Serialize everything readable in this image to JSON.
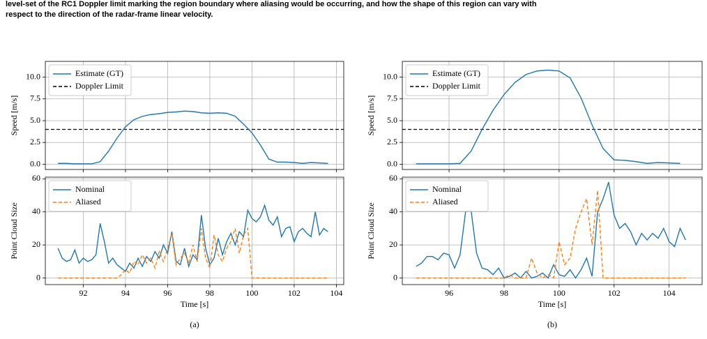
{
  "caption": [
    "level-set of the RC1 Doppler limit marking the region boundary where aliasing would be occurring, and how the shape of this region can vary with",
    "respect to the direction of the radar-frame linear velocity."
  ],
  "subfigure_labels": [
    "(a)",
    "(b)"
  ],
  "chart_data": [
    {
      "type": "line",
      "ylabel": "Speed [m/s]",
      "grid": true,
      "legend": "upper left",
      "xlim": [
        90.2,
        104.35
      ],
      "ylim": [
        -0.6,
        11.8
      ],
      "xticks": [
        92,
        94,
        96,
        98,
        100,
        102,
        104
      ],
      "yticks": [
        {
          "value": 0,
          "label": "0.0"
        },
        {
          "value": 2.5,
          "label": "2.5"
        },
        {
          "value": 5,
          "label": "5.0"
        },
        {
          "value": 7.5,
          "label": "7.5"
        },
        {
          "value": 10,
          "label": "10.0"
        }
      ],
      "x": [
        90.8,
        91.2,
        91.6,
        92.0,
        92.4,
        92.8,
        93.2,
        93.6,
        94.0,
        94.4,
        94.8,
        95.2,
        95.6,
        96.0,
        96.4,
        96.8,
        97.2,
        97.6,
        98.0,
        98.4,
        98.8,
        99.2,
        99.6,
        100.0,
        100.4,
        100.8,
        101.2,
        101.6,
        102.0,
        102.4,
        102.8,
        103.2,
        103.6
      ],
      "series": [
        {
          "name": "Estimate (GT)",
          "color": "#1f77b4",
          "values": [
            0.1,
            0.1,
            0.05,
            0.05,
            0.05,
            0.3,
            1.5,
            3.0,
            4.3,
            5.1,
            5.5,
            5.7,
            5.8,
            5.95,
            6.0,
            6.1,
            6.05,
            5.9,
            5.85,
            5.9,
            5.85,
            5.5,
            4.6,
            3.6,
            2.2,
            0.6,
            0.25,
            0.25,
            0.2,
            0.1,
            0.2,
            0.15,
            0.1
          ]
        }
      ],
      "hlines": [
        {
          "name": "Doppler Limit",
          "color": "#000000",
          "dashed": true,
          "y": 4
        }
      ]
    },
    {
      "type": "line",
      "ylabel": "Point Cloud Size",
      "xlabel": "Time [s]",
      "grid": true,
      "legend": "upper left",
      "xlim": [
        90.2,
        104.35
      ],
      "ylim": [
        -4,
        61
      ],
      "xticks": [
        92,
        94,
        96,
        98,
        100,
        102,
        104
      ],
      "yticks": [
        0,
        20,
        40,
        60
      ],
      "x": [
        90.8,
        91.0,
        91.2,
        91.4,
        91.6,
        91.8,
        92.0,
        92.2,
        92.4,
        92.6,
        92.8,
        93.0,
        93.2,
        93.4,
        93.6,
        93.8,
        94.0,
        94.2,
        94.4,
        94.6,
        94.8,
        95.0,
        95.2,
        95.4,
        95.6,
        95.8,
        96.0,
        96.2,
        96.4,
        96.6,
        96.8,
        97.0,
        97.2,
        97.4,
        97.6,
        97.8,
        98.0,
        98.2,
        98.4,
        98.6,
        98.8,
        99.0,
        99.2,
        99.4,
        99.6,
        99.8,
        100.0,
        100.2,
        100.4,
        100.6,
        100.8,
        101.0,
        101.2,
        101.4,
        101.6,
        101.8,
        102.0,
        102.2,
        102.4,
        102.6,
        102.8,
        103.0,
        103.2,
        103.4,
        103.6
      ],
      "series": [
        {
          "name": "Nominal",
          "color": "#1f77b4",
          "dashed": false,
          "values": [
            18,
            12,
            10,
            11,
            17,
            9,
            12,
            10,
            11,
            14,
            33,
            22,
            9,
            12,
            8,
            6,
            4,
            9,
            6,
            12,
            7,
            13,
            10,
            16,
            12,
            20,
            15,
            28,
            10,
            8,
            18,
            7,
            14,
            11,
            38,
            18,
            8,
            12,
            24,
            14,
            22,
            27,
            20,
            28,
            25,
            41,
            36,
            34,
            37,
            44,
            35,
            32,
            37,
            25,
            30,
            31,
            22,
            28,
            30,
            27,
            25,
            40,
            26,
            30,
            28
          ]
        },
        {
          "name": "Aliased",
          "color": "#ff7f0e",
          "dashed": true,
          "values": [
            0,
            0,
            0,
            0,
            0,
            0,
            0,
            0,
            0,
            0,
            0,
            0,
            0,
            0,
            0,
            2,
            5,
            3,
            10,
            8,
            14,
            9,
            12,
            6,
            16,
            10,
            18,
            27,
            8,
            12,
            15,
            9,
            20,
            10,
            30,
            12,
            6,
            26,
            14,
            10,
            18,
            22,
            30,
            15,
            26,
            30,
            0,
            0,
            0,
            0,
            0,
            0,
            0,
            0,
            0,
            0,
            0,
            0,
            0,
            0,
            0,
            0,
            0,
            0,
            0
          ]
        }
      ]
    },
    {
      "type": "line",
      "ylabel": "Speed [m/s]",
      "grid": true,
      "legend": "upper left",
      "xlim": [
        94.3,
        105.2
      ],
      "ylim": [
        -0.6,
        11.8
      ],
      "xticks": [
        96,
        98,
        100,
        102,
        104
      ],
      "yticks": [
        {
          "value": 0,
          "label": "0.0"
        },
        {
          "value": 2.5,
          "label": "2.5"
        },
        {
          "value": 5,
          "label": "5.0"
        },
        {
          "value": 7.5,
          "label": "7.5"
        },
        {
          "value": 10,
          "label": "10.0"
        }
      ],
      "x": [
        94.8,
        95.2,
        95.6,
        96.0,
        96.4,
        96.8,
        97.2,
        97.6,
        98.0,
        98.4,
        98.8,
        99.2,
        99.6,
        100.0,
        100.4,
        100.8,
        101.2,
        101.6,
        102.0,
        102.4,
        102.8,
        103.2,
        103.6,
        104.0,
        104.4
      ],
      "series": [
        {
          "name": "Estimate (GT)",
          "color": "#1f77b4",
          "values": [
            0.05,
            0.05,
            0.05,
            0.05,
            0.1,
            1.5,
            4.0,
            6.2,
            8.0,
            9.4,
            10.3,
            10.7,
            10.8,
            10.7,
            9.9,
            7.6,
            4.5,
            1.8,
            0.5,
            0.45,
            0.3,
            0.1,
            0.2,
            0.15,
            0.1
          ]
        }
      ],
      "hlines": [
        {
          "name": "Doppler Limit",
          "color": "#000000",
          "dashed": true,
          "y": 4
        }
      ]
    },
    {
      "type": "line",
      "ylabel": "Point Cloud Size",
      "xlabel": "Time [s]",
      "grid": true,
      "legend": "upper left",
      "xlim": [
        94.3,
        105.2
      ],
      "ylim": [
        -4,
        61
      ],
      "xticks": [
        96,
        98,
        100,
        102,
        104
      ],
      "yticks": [
        0,
        20,
        40,
        60
      ],
      "x": [
        94.8,
        95.0,
        95.2,
        95.4,
        95.6,
        95.8,
        96.0,
        96.2,
        96.4,
        96.6,
        96.8,
        97.0,
        97.2,
        97.4,
        97.6,
        97.8,
        98.0,
        98.2,
        98.4,
        98.6,
        98.8,
        99.0,
        99.2,
        99.4,
        99.6,
        99.8,
        100.0,
        100.2,
        100.4,
        100.6,
        100.8,
        101.0,
        101.2,
        101.4,
        101.6,
        101.8,
        102.0,
        102.2,
        102.4,
        102.6,
        102.8,
        103.0,
        103.2,
        103.4,
        103.6,
        103.8,
        104.0,
        104.2,
        104.4,
        104.6
      ],
      "series": [
        {
          "name": "Nominal",
          "color": "#1f77b4",
          "dashed": false,
          "values": [
            7,
            9,
            13,
            13,
            11,
            15,
            14,
            6,
            14,
            40,
            41,
            15,
            6,
            5,
            2,
            6,
            0,
            1,
            3,
            0,
            4,
            0,
            1,
            3,
            0,
            8,
            2,
            1,
            5,
            0,
            5,
            12,
            1,
            40,
            48,
            58,
            38,
            30,
            33,
            28,
            20,
            27,
            23,
            27,
            24,
            30,
            22,
            19,
            30,
            23
          ]
        },
        {
          "name": "Aliased",
          "color": "#ff7f0e",
          "dashed": true,
          "values": [
            0,
            0,
            0,
            0,
            0,
            0,
            0,
            0,
            0,
            0,
            0,
            0,
            0,
            0,
            0,
            0,
            0,
            2,
            0,
            0,
            0,
            12,
            3,
            0,
            2,
            0,
            22,
            8,
            12,
            30,
            40,
            48,
            20,
            53,
            0,
            0,
            0,
            0,
            0,
            0,
            0,
            0,
            0,
            0,
            0,
            0,
            0,
            0,
            0,
            0
          ]
        }
      ]
    }
  ]
}
